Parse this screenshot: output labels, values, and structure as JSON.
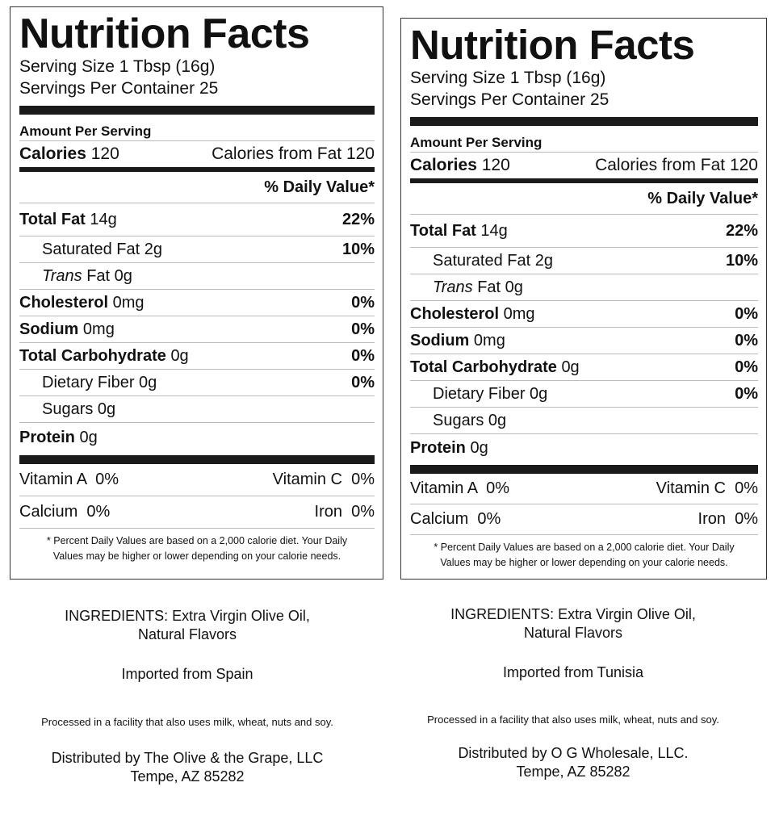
{
  "labels": [
    {
      "title": "Nutrition Facts",
      "serving_size": "Serving Size 1 Tbsp (16g)",
      "servings_per_container": "Servings Per Container 25",
      "amount_per_serving": "Amount Per Serving",
      "calories_label": "Calories",
      "calories_value": "120",
      "calories_from_fat": "Calories from Fat 120",
      "daily_value_header": "% Daily Value*",
      "nutrients": {
        "total_fat": {
          "name": "Total Fat",
          "amount": "14g",
          "pct": "22%"
        },
        "saturated_fat": {
          "name": "Saturated Fat 2g",
          "pct": "10%"
        },
        "trans_fat": {
          "name": "Trans",
          "amount": "Fat 0g"
        },
        "cholesterol": {
          "name": "Cholesterol",
          "amount": "0mg",
          "pct": "0%"
        },
        "sodium": {
          "name": "Sodium",
          "amount": "0mg",
          "pct": "0%"
        },
        "total_carbohydrate": {
          "name": "Total Carbohydrate",
          "amount": "0g",
          "pct": "0%"
        },
        "dietary_fiber": {
          "name": "Dietary Fiber 0g",
          "pct": "0%"
        },
        "sugars": {
          "name": "Sugars 0g"
        },
        "protein": {
          "name": "Protein",
          "amount": "0g"
        }
      },
      "vitamins": {
        "vitamin_a": "Vitamin A  0%",
        "vitamin_c": "Vitamin C  0%",
        "calcium": "Calcium  0%",
        "iron": "Iron  0%"
      },
      "footnote_line1": "* Percent Daily Values are based on a 2,000 calorie diet. Your Daily",
      "footnote_line2": "Values may be higher or lower depending on your calorie needs."
    },
    {
      "title": "Nutrition Facts",
      "serving_size": "Serving Size 1 Tbsp (16g)",
      "servings_per_container": "Servings Per Container 25",
      "amount_per_serving": "Amount Per Serving",
      "calories_label": "Calories",
      "calories_value": "120",
      "calories_from_fat": "Calories from Fat 120",
      "daily_value_header": "% Daily Value*",
      "nutrients": {
        "total_fat": {
          "name": "Total Fat",
          "amount": "14g",
          "pct": "22%"
        },
        "saturated_fat": {
          "name": "Saturated Fat 2g",
          "pct": "10%"
        },
        "trans_fat": {
          "name": "Trans",
          "amount": "Fat 0g"
        },
        "cholesterol": {
          "name": "Cholesterol",
          "amount": "0mg",
          "pct": "0%"
        },
        "sodium": {
          "name": "Sodium",
          "amount": "0mg",
          "pct": "0%"
        },
        "total_carbohydrate": {
          "name": "Total Carbohydrate",
          "amount": "0g",
          "pct": "0%"
        },
        "dietary_fiber": {
          "name": "Dietary Fiber 0g",
          "pct": "0%"
        },
        "sugars": {
          "name": "Sugars 0g"
        },
        "protein": {
          "name": "Protein",
          "amount": "0g"
        }
      },
      "vitamins": {
        "vitamin_a": "Vitamin A  0%",
        "vitamin_c": "Vitamin C  0%",
        "calcium": "Calcium  0%",
        "iron": "Iron  0%"
      },
      "footnote_line1": "* Percent Daily Values are based on a 2,000 calorie diet. Your Daily",
      "footnote_line2": "Values may be higher or lower depending on your calorie needs."
    }
  ],
  "product_info": [
    {
      "ingredients_line1": "INGREDIENTS: Extra Virgin Olive Oil,",
      "ingredients_line2": "Natural Flavors",
      "origin": "Imported from Spain",
      "allergen": "Processed in a facility that also uses milk, wheat, nuts and soy.",
      "distributor_line1": "Distributed by The Olive & the Grape, LLC",
      "distributor_line2": "Tempe, AZ 85282"
    },
    {
      "ingredients_line1": "INGREDIENTS: Extra Virgin Olive Oil,",
      "ingredients_line2": "Natural Flavors",
      "origin": "Imported from Tunisia",
      "allergen": "Processed in a facility that also uses milk, wheat, nuts and soy.",
      "distributor_line1": "Distributed by O G Wholesale, LLC.",
      "distributor_line2": "Tempe, AZ 85282"
    }
  ]
}
